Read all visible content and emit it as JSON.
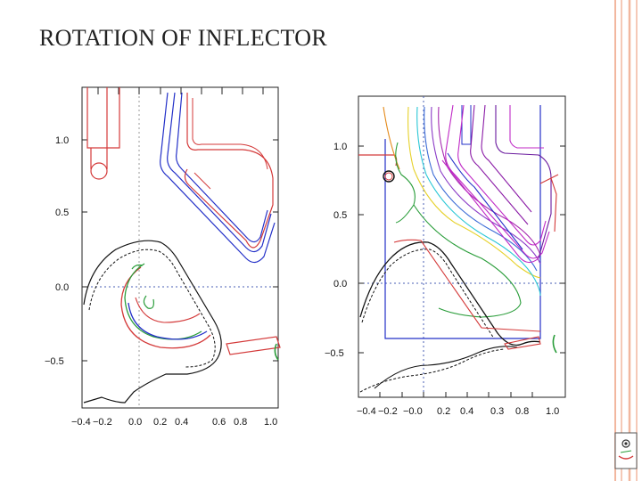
{
  "slide": {
    "title": "ROTATION OF INFLECTOR",
    "accent_color": "#f2b79f"
  },
  "figures": [
    {
      "name": "left-plot",
      "y_ticks": [
        "1.0",
        "0.5",
        "0.0",
        "−0.5"
      ],
      "x_ticks": [
        "−0.4",
        "−0.2",
        "0.0",
        "0.2",
        "0.4",
        "0.6",
        "0.8",
        "1.0"
      ]
    },
    {
      "name": "right-plot",
      "y_ticks": [
        "1.0",
        "0.5",
        "0.0",
        "−0.5"
      ],
      "x_ticks": [
        "−0.4",
        "−0.2",
        "−0.0",
        "0.2",
        "0.4",
        "0.3",
        "0.8",
        "1.0"
      ]
    }
  ],
  "icons": {
    "logo": "face-logo-icon"
  }
}
